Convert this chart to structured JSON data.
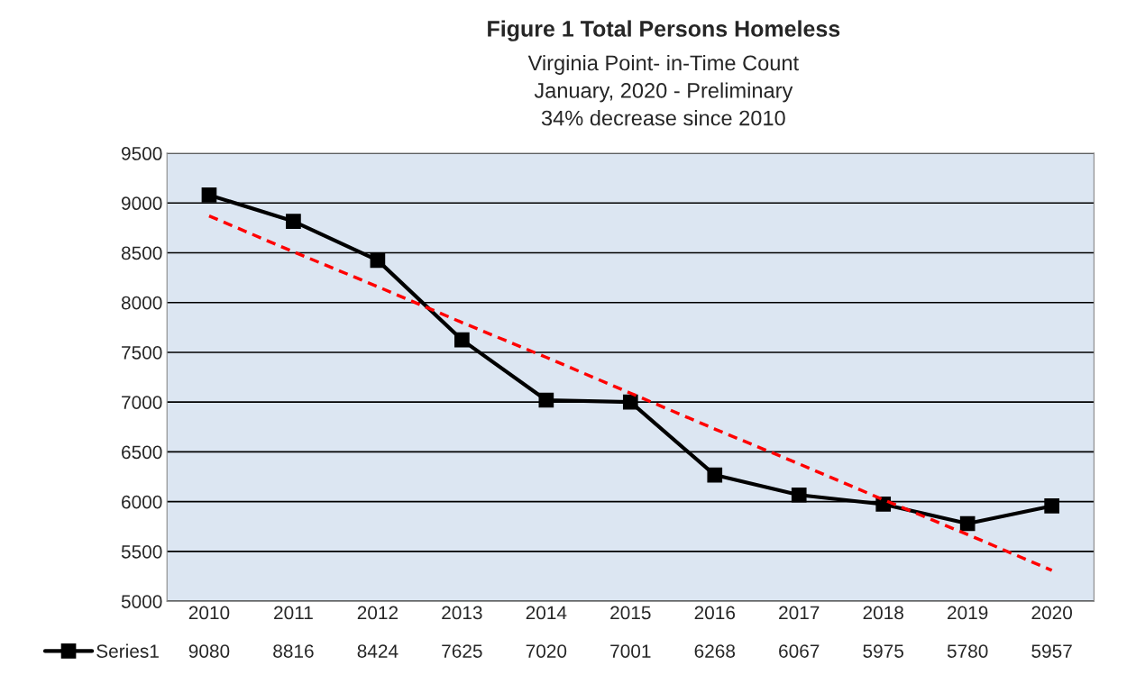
{
  "chart_data": {
    "type": "line",
    "title": "Figure 1 Total Persons Homeless",
    "subtitle": "Virginia Point- in-Time Count\nJanuary, 2020 - Preliminary\n34% decrease since 2010",
    "categories": [
      "2010",
      "2011",
      "2012",
      "2013",
      "2014",
      "2015",
      "2016",
      "2017",
      "2018",
      "2019",
      "2020"
    ],
    "series": [
      {
        "name": "Series1",
        "color": "#000000",
        "marker": "square",
        "line_style": "solid",
        "values": [
          9080,
          8816,
          8424,
          7625,
          7020,
          7001,
          6268,
          6067,
          5975,
          5780,
          5957
        ],
        "value_labels": [
          "9080",
          "8816",
          "8424",
          "7625",
          "7020",
          "7001",
          "6268",
          "6067",
          "5975",
          "5780",
          "5957"
        ]
      },
      {
        "type": "line",
        "color": "#ff0000",
        "line_style": "dashed",
        "marker": "none",
        "values": [
          8870,
          8510,
          8160,
          7800,
          7450,
          7090,
          6730,
          6380,
          6020,
          5670,
          5310
        ]
      }
    ],
    "ylim": [
      5000,
      9500
    ],
    "yticks": [
      5000,
      5500,
      6000,
      6500,
      7000,
      7500,
      8000,
      8500,
      9000,
      9500
    ],
    "grid": "y",
    "legend": "bottom"
  }
}
